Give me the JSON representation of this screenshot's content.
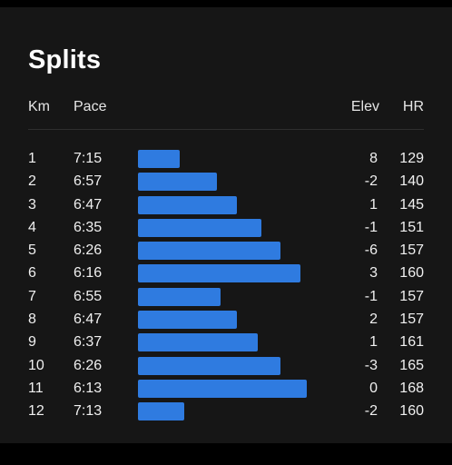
{
  "title": "Splits",
  "columns": {
    "km": "Km",
    "pace": "Pace",
    "elev": "Elev",
    "hr": "HR"
  },
  "colors": {
    "bar": "#2f7be0",
    "background": "#161616"
  },
  "chart_data": {
    "type": "bar",
    "categories": [
      "1",
      "2",
      "3",
      "4",
      "5",
      "6",
      "7",
      "8",
      "9",
      "10",
      "11",
      "12"
    ],
    "pace": [
      "7:15",
      "6:57",
      "6:47",
      "6:35",
      "6:26",
      "6:16",
      "6:55",
      "6:47",
      "6:37",
      "6:26",
      "6:13",
      "7:13"
    ],
    "elev": [
      "8",
      "-2",
      "1",
      "-1",
      "-6",
      "3",
      "-1",
      "2",
      "1",
      "-3",
      "0",
      "-2"
    ],
    "hr": [
      "129",
      "140",
      "145",
      "151",
      "157",
      "160",
      "157",
      "157",
      "161",
      "165",
      "168",
      "160"
    ]
  }
}
